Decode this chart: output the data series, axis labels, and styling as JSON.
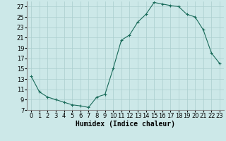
{
  "x": [
    0,
    1,
    2,
    3,
    4,
    5,
    6,
    7,
    8,
    9,
    10,
    11,
    12,
    13,
    14,
    15,
    16,
    17,
    18,
    19,
    20,
    21,
    22,
    23
  ],
  "y": [
    13.5,
    10.5,
    9.5,
    9.0,
    8.5,
    8.0,
    7.8,
    7.5,
    9.5,
    10.0,
    15.0,
    20.5,
    21.5,
    24.0,
    25.5,
    27.8,
    27.5,
    27.2,
    27.0,
    25.5,
    25.0,
    22.5,
    18.0,
    16.0
  ],
  "line_color": "#1a6b5a",
  "marker": "+",
  "marker_size": 3,
  "bg_color": "#cce8e8",
  "grid_color": "#aacece",
  "xlabel": "Humidex (Indice chaleur)",
  "xlim": [
    -0.5,
    23.5
  ],
  "ylim": [
    7,
    28
  ],
  "yticks": [
    7,
    9,
    11,
    13,
    15,
    17,
    19,
    21,
    23,
    25,
    27
  ],
  "xticks": [
    0,
    1,
    2,
    3,
    4,
    5,
    6,
    7,
    8,
    9,
    10,
    11,
    12,
    13,
    14,
    15,
    16,
    17,
    18,
    19,
    20,
    21,
    22,
    23
  ],
  "font_size": 6,
  "label_font_size": 7
}
